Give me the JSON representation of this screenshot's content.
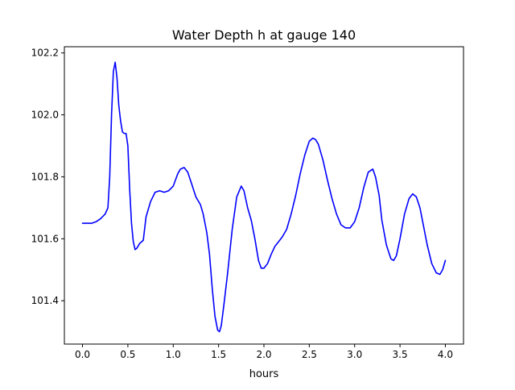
{
  "chart_data": {
    "type": "line",
    "title": "Water Depth h at gauge 140",
    "xlabel": "hours",
    "ylabel": "",
    "xlim": [
      -0.2,
      4.2
    ],
    "ylim": [
      101.26,
      102.22
    ],
    "xticks": [
      0.0,
      0.5,
      1.0,
      1.5,
      2.0,
      2.5,
      3.0,
      3.5,
      4.0
    ],
    "xtick_labels": [
      "0.0",
      "0.5",
      "1.0",
      "1.5",
      "2.0",
      "2.5",
      "3.0",
      "3.5",
      "4.0"
    ],
    "yticks": [
      101.4,
      101.6,
      101.8,
      102.0,
      102.2
    ],
    "ytick_labels": [
      "101.4",
      "101.6",
      "101.8",
      "102.0",
      "102.2"
    ],
    "grid": false,
    "legend": "none",
    "colors": {
      "line": "#0000ff",
      "axes": "#000000",
      "background": "#ffffff"
    },
    "series": [
      {
        "x": [
          0.0,
          0.1,
          0.15,
          0.2,
          0.25,
          0.28,
          0.3,
          0.32,
          0.34,
          0.36,
          0.38,
          0.4,
          0.42,
          0.44,
          0.46,
          0.48,
          0.5,
          0.52,
          0.54,
          0.56,
          0.58,
          0.6,
          0.63,
          0.67,
          0.7,
          0.75,
          0.8,
          0.85,
          0.9,
          0.95,
          1.0,
          1.05,
          1.08,
          1.12,
          1.16,
          1.2,
          1.25,
          1.3,
          1.33,
          1.37,
          1.4,
          1.43,
          1.46,
          1.49,
          1.51,
          1.53,
          1.56,
          1.6,
          1.65,
          1.7,
          1.75,
          1.78,
          1.82,
          1.86,
          1.9,
          1.94,
          1.97,
          2.0,
          2.04,
          2.08,
          2.12,
          2.16,
          2.2,
          2.25,
          2.3,
          2.35,
          2.4,
          2.45,
          2.5,
          2.54,
          2.57,
          2.6,
          2.65,
          2.7,
          2.75,
          2.8,
          2.85,
          2.9,
          2.95,
          3.0,
          3.05,
          3.1,
          3.15,
          3.2,
          3.23,
          3.27,
          3.3,
          3.35,
          3.4,
          3.43,
          3.46,
          3.5,
          3.55,
          3.6,
          3.64,
          3.68,
          3.72,
          3.76,
          3.8,
          3.85,
          3.9,
          3.94,
          3.97,
          4.0
        ],
        "values": [
          101.65,
          101.65,
          101.655,
          101.665,
          101.68,
          101.7,
          101.8,
          102.0,
          102.14,
          102.17,
          102.12,
          102.03,
          101.98,
          101.945,
          101.94,
          101.94,
          101.9,
          101.76,
          101.65,
          101.59,
          101.565,
          101.57,
          101.585,
          101.595,
          101.67,
          101.72,
          101.75,
          101.755,
          101.75,
          101.755,
          101.77,
          101.81,
          101.825,
          101.83,
          101.815,
          101.78,
          101.735,
          101.71,
          101.68,
          101.62,
          101.55,
          101.44,
          101.35,
          101.305,
          101.3,
          101.32,
          101.39,
          101.49,
          101.63,
          101.735,
          101.77,
          101.755,
          101.7,
          101.66,
          101.6,
          101.53,
          101.505,
          101.505,
          101.52,
          101.55,
          101.575,
          101.59,
          101.605,
          101.63,
          101.68,
          101.74,
          101.81,
          101.87,
          101.915,
          101.925,
          101.92,
          101.905,
          101.855,
          101.79,
          101.73,
          101.68,
          101.645,
          101.635,
          101.635,
          101.655,
          101.7,
          101.765,
          101.815,
          101.825,
          101.8,
          101.74,
          101.66,
          101.58,
          101.535,
          101.53,
          101.545,
          101.6,
          101.68,
          101.73,
          101.745,
          101.735,
          101.7,
          101.64,
          101.58,
          101.52,
          101.49,
          101.485,
          101.5,
          101.53
        ]
      }
    ]
  }
}
